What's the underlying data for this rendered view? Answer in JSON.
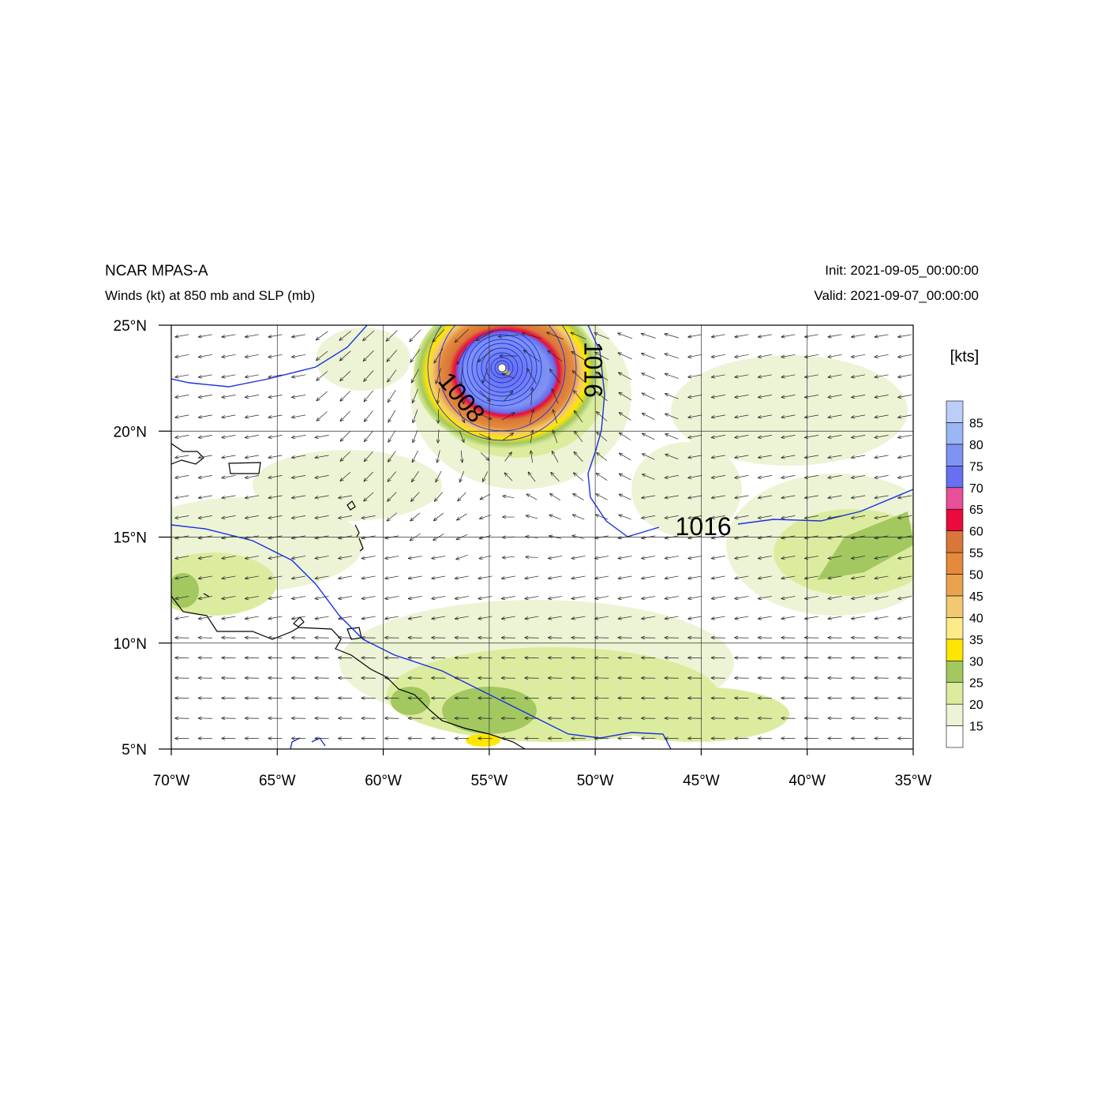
{
  "header": {
    "model": "NCAR MPAS-A",
    "fields": "Winds (kt) at 850 mb and SLP (mb)",
    "init": "Init: 2021-09-05_00:00:00",
    "valid": "Valid: 2021-09-07_00:00:00"
  },
  "map": {
    "lon_range": [
      -70,
      -35
    ],
    "lat_range": [
      5,
      25
    ],
    "lon_ticks": [
      {
        "v": -70,
        "label": "70°W"
      },
      {
        "v": -65,
        "label": "65°W"
      },
      {
        "v": -60,
        "label": "60°W"
      },
      {
        "v": -55,
        "label": "55°W"
      },
      {
        "v": -50,
        "label": "50°W"
      },
      {
        "v": -45,
        "label": "45°W"
      },
      {
        "v": -40,
        "label": "40°W"
      },
      {
        "v": -35,
        "label": "35°W"
      }
    ],
    "lat_ticks": [
      {
        "v": 25,
        "label": "25°N"
      },
      {
        "v": 20,
        "label": "20°N"
      },
      {
        "v": 15,
        "label": "15°N"
      },
      {
        "v": 10,
        "label": "10°N"
      },
      {
        "v": 5,
        "label": "5°N"
      }
    ],
    "gridlines": true,
    "contour_labels": [
      {
        "text": "1008",
        "lon": -56.3,
        "lat": 21.6,
        "rotate": 50
      },
      {
        "text": "1016",
        "lon": -50.1,
        "lat": 22.9,
        "rotate": 90
      },
      {
        "text": "1016",
        "lon": -44.9,
        "lat": 15.5,
        "rotate": 0
      }
    ],
    "storm_center": {
      "lon": -54.4,
      "lat": 22.8
    },
    "colors": {
      "isobar": "#1a2fe6",
      "coast": "#000000",
      "vector": "#222222"
    }
  },
  "legend": {
    "unit": "[kts]",
    "levels": [
      "15",
      "20",
      "25",
      "30",
      "35",
      "40",
      "45",
      "50",
      "55",
      "60",
      "65",
      "70",
      "75",
      "80",
      "85"
    ],
    "colors": [
      "#ffffff",
      "#ecf4d5",
      "#dcec9f",
      "#a3c860",
      "#ffe600",
      "#fdeb8a",
      "#f2c870",
      "#eba24f",
      "#e48a3c",
      "#d9763a",
      "#eb0a3c",
      "#e8509a",
      "#6670f0",
      "#7f93f2",
      "#9bb6f5",
      "#bccdfa"
    ]
  }
}
